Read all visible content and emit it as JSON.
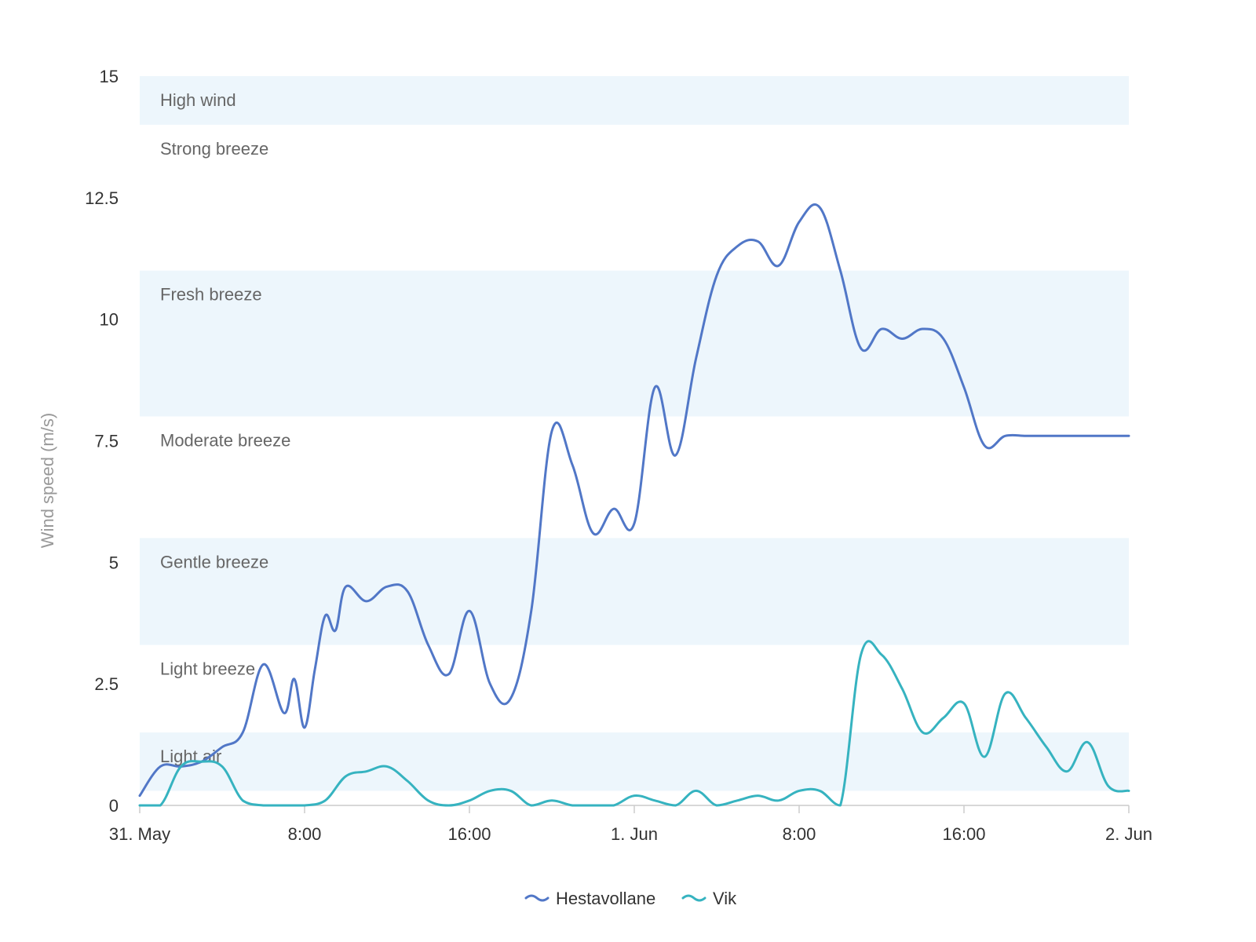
{
  "chart_data": {
    "type": "line",
    "title": "",
    "xlabel": "",
    "ylabel": "Wind speed (m/s)",
    "ylim": [
      0,
      15
    ],
    "y_ticks": [
      "0",
      "2.5",
      "5",
      "7.5",
      "10",
      "12.5",
      "15"
    ],
    "x_range_hours": [
      0,
      48
    ],
    "x_ticks": [
      {
        "hour": 0,
        "label": "31. May"
      },
      {
        "hour": 8,
        "label": "8:00"
      },
      {
        "hour": 16,
        "label": "16:00"
      },
      {
        "hour": 24,
        "label": "1. Jun"
      },
      {
        "hour": 32,
        "label": "8:00"
      },
      {
        "hour": 40,
        "label": "16:00"
      },
      {
        "hour": 48,
        "label": "2. Jun"
      }
    ],
    "grid": false,
    "legend_position": "bottom-center",
    "plot_bands": [
      {
        "label": "Light air",
        "from": 0.3,
        "to": 1.5,
        "shaded": true
      },
      {
        "label": "Light breeze",
        "from": 1.5,
        "to": 3.3,
        "shaded": false
      },
      {
        "label": "Gentle breeze",
        "from": 3.3,
        "to": 5.5,
        "shaded": true
      },
      {
        "label": "Moderate breeze",
        "from": 5.5,
        "to": 8,
        "shaded": false
      },
      {
        "label": "Fresh breeze",
        "from": 8,
        "to": 11,
        "shaded": true
      },
      {
        "label": "Strong breeze",
        "from": 11,
        "to": 14,
        "shaded": false
      },
      {
        "label": "High wind",
        "from": 14,
        "to": 15,
        "shaded": true
      }
    ],
    "band_color": "#edf6fc",
    "series": [
      {
        "name": "Hestavollane",
        "color": "#5177c7",
        "x": [
          0,
          1,
          2,
          3,
          4,
          5,
          6,
          7,
          7.5,
          8,
          8.5,
          9,
          9.5,
          10,
          11,
          12,
          13,
          14,
          15,
          16,
          17,
          18,
          19,
          20,
          21,
          22,
          23,
          24,
          25,
          26,
          27,
          28,
          29,
          30,
          31,
          32,
          33,
          34,
          35,
          36,
          37,
          38,
          39,
          40,
          41,
          42,
          43,
          44,
          45,
          46,
          47,
          48
        ],
        "y": [
          0.2,
          0.8,
          0.8,
          0.9,
          1.2,
          1.5,
          2.9,
          1.9,
          2.6,
          1.6,
          2.8,
          3.9,
          3.6,
          4.5,
          4.2,
          4.5,
          4.4,
          3.3,
          2.7,
          4,
          2.5,
          2.2,
          4,
          7.7,
          7,
          5.6,
          6.1,
          5.8,
          8.6,
          7.2,
          9.2,
          10.9,
          11.5,
          11.6,
          11.1,
          12,
          12.3,
          11,
          9.4,
          9.8,
          9.6,
          9.8,
          9.6,
          8.6,
          7.4,
          7.6,
          7.6,
          7.6,
          7.6,
          7.6,
          7.6,
          7.6
        ],
        "x_fix": true
      },
      {
        "name": "Vik",
        "color": "#36b3c0",
        "x": [
          0,
          1,
          2,
          3,
          4,
          5,
          6,
          7,
          8,
          9,
          10,
          11,
          12,
          13,
          14,
          15,
          16,
          17,
          18,
          19,
          20,
          21,
          22,
          23,
          24,
          25,
          26,
          27,
          28,
          29,
          30,
          31,
          32,
          33,
          34,
          35,
          36,
          37,
          38,
          39,
          40,
          41,
          42,
          43,
          44,
          45,
          46,
          47,
          48
        ],
        "y": [
          0,
          0,
          0.8,
          0.9,
          0.8,
          0.1,
          0,
          0,
          0,
          0.1,
          0.6,
          0.7,
          0.8,
          0.5,
          0.1,
          0,
          0.1,
          0.3,
          0.3,
          0,
          0.1,
          0,
          0,
          0,
          0.2,
          0.1,
          0,
          0.3,
          0,
          0.1,
          0.2,
          0.1,
          0.3,
          0.3,
          0,
          3.1,
          3.1,
          2.4,
          1.5,
          1.8,
          2.1,
          1,
          2.3,
          1.8,
          1.2,
          0.7,
          1.3,
          0.4,
          0.3
        ]
      }
    ]
  }
}
